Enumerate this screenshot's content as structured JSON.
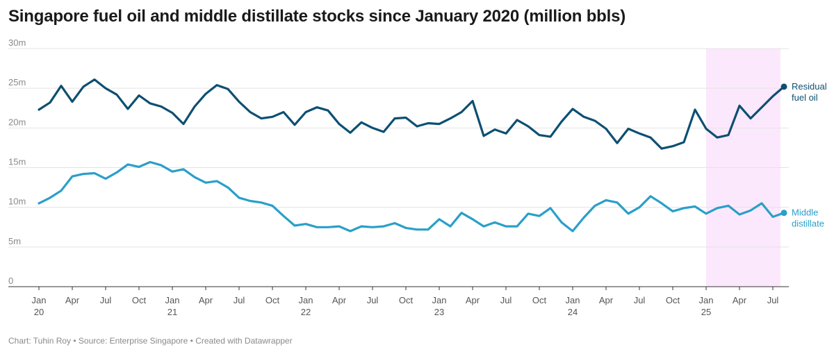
{
  "title": "Singapore fuel oil and middle distillate stocks since January 2020 (million bbls)",
  "footer": "Chart: Tuhin Roy • Source: Enterprise Singapore • Created with Datawrapper",
  "chart_data": {
    "type": "line",
    "title": "Singapore fuel oil and middle distillate stocks since January 2020 (million bbls)",
    "x_start": "2020-01",
    "ylim": [
      0,
      30
    ],
    "yticks": [
      {
        "value": 0,
        "label": "0"
      },
      {
        "value": 5,
        "label": "5m"
      },
      {
        "value": 10,
        "label": "10m"
      },
      {
        "value": 15,
        "label": "15m"
      },
      {
        "value": 20,
        "label": "20m"
      },
      {
        "value": 25,
        "label": "25m"
      },
      {
        "value": 30,
        "label": "30m"
      }
    ],
    "xticks": [
      {
        "month": "2020-01",
        "label": "Jan",
        "year": "20"
      },
      {
        "month": "2020-04",
        "label": "Apr"
      },
      {
        "month": "2020-07",
        "label": "Jul"
      },
      {
        "month": "2020-10",
        "label": "Oct"
      },
      {
        "month": "2021-01",
        "label": "Jan",
        "year": "21"
      },
      {
        "month": "2021-04",
        "label": "Apr"
      },
      {
        "month": "2021-07",
        "label": "Jul"
      },
      {
        "month": "2021-10",
        "label": "Oct"
      },
      {
        "month": "2022-01",
        "label": "Jan",
        "year": "22"
      },
      {
        "month": "2022-04",
        "label": "Apr"
      },
      {
        "month": "2022-07",
        "label": "Jul"
      },
      {
        "month": "2022-10",
        "label": "Oct"
      },
      {
        "month": "2023-01",
        "label": "Jan",
        "year": "23"
      },
      {
        "month": "2023-04",
        "label": "Apr"
      },
      {
        "month": "2023-07",
        "label": "Jul"
      },
      {
        "month": "2023-10",
        "label": "Oct"
      },
      {
        "month": "2024-01",
        "label": "Jan",
        "year": "24"
      },
      {
        "month": "2024-04",
        "label": "Apr"
      },
      {
        "month": "2024-07",
        "label": "Jul"
      },
      {
        "month": "2024-10",
        "label": "Oct"
      },
      {
        "month": "2025-01",
        "label": "Jan",
        "year": "25"
      },
      {
        "month": "2025-04",
        "label": "Apr"
      },
      {
        "month": "2025-07",
        "label": "Jul"
      }
    ],
    "highlight_range": [
      "2025-01",
      "2025-08"
    ],
    "highlight_color": "#fce8fc",
    "grid": true,
    "series": [
      {
        "name": "Residual fuel oil",
        "label_lines": [
          "Residual",
          "fuel oil"
        ],
        "color": "#0d4f72",
        "values": [
          22.3,
          23.2,
          25.3,
          23.3,
          25.2,
          26.1,
          25.0,
          24.2,
          22.4,
          24.1,
          23.1,
          22.7,
          21.9,
          20.5,
          22.7,
          24.3,
          25.4,
          24.9,
          23.3,
          22.0,
          21.2,
          21.4,
          22.0,
          20.4,
          22.0,
          22.6,
          22.2,
          20.5,
          19.4,
          20.7,
          20.0,
          19.5,
          21.2,
          21.3,
          20.2,
          20.6,
          20.5,
          21.2,
          22.0,
          23.4,
          19.0,
          19.8,
          19.3,
          21.0,
          20.2,
          19.1,
          18.9,
          20.8,
          22.4,
          21.4,
          20.9,
          19.9,
          18.1,
          19.9,
          19.3,
          18.8,
          17.4,
          17.7,
          18.2,
          22.3,
          19.9,
          18.8,
          19.1,
          22.8,
          21.2,
          22.6,
          24.0,
          25.2
        ]
      },
      {
        "name": "Middle distillate",
        "label_lines": [
          "Middle",
          "distillate"
        ],
        "color": "#2a9fc9",
        "values": [
          10.5,
          11.2,
          12.1,
          13.9,
          14.2,
          14.3,
          13.6,
          14.4,
          15.4,
          15.1,
          15.7,
          15.3,
          14.5,
          14.8,
          13.8,
          13.1,
          13.3,
          12.5,
          11.2,
          10.8,
          10.6,
          10.2,
          8.9,
          7.7,
          7.9,
          7.5,
          7.5,
          7.6,
          7.0,
          7.6,
          7.5,
          7.6,
          8.0,
          7.4,
          7.2,
          7.2,
          8.5,
          7.6,
          9.3,
          8.5,
          7.6,
          8.1,
          7.6,
          7.6,
          9.2,
          8.9,
          9.9,
          8.1,
          7.0,
          8.7,
          10.2,
          10.9,
          10.6,
          9.2,
          10.0,
          11.4,
          10.5,
          9.5,
          9.9,
          10.1,
          9.2,
          9.9,
          10.2,
          9.1,
          9.6,
          10.5,
          8.8,
          9.3
        ]
      }
    ]
  }
}
